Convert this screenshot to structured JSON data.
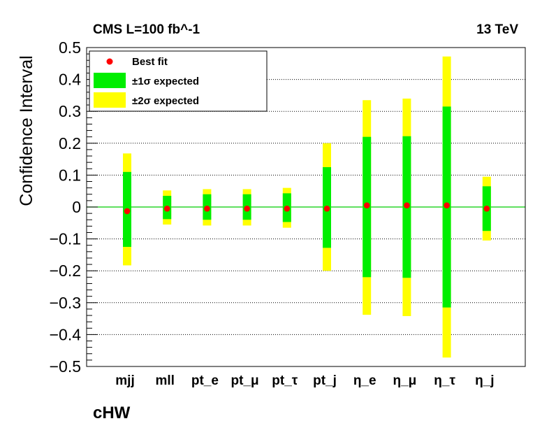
{
  "header": {
    "left": "CMS   L=100 fb^-1",
    "right": "13 TeV"
  },
  "operator_label": "cHW",
  "legend": {
    "best_fit": "Best fit",
    "one_sigma": "±1σ expected",
    "two_sigma": "±2σ expected"
  },
  "colors": {
    "best_fit": "#ff0000",
    "one_sigma": "#00ee00",
    "two_sigma": "#ffff00",
    "zero_line": "#00cc00"
  },
  "chart_data": {
    "type": "bar",
    "title": "",
    "xlabel": "",
    "ylabel": "Confidence Interval",
    "ylim": [
      -0.5,
      0.5
    ],
    "yticks": [
      "0.5",
      "0.4",
      "0.3",
      "0.2",
      "0.1",
      "0",
      "−0.1",
      "−0.2",
      "−0.3",
      "−0.4",
      "−0.5"
    ],
    "ytick_values": [
      0.5,
      0.4,
      0.3,
      0.2,
      0.1,
      0,
      -0.1,
      -0.2,
      -0.3,
      -0.4,
      -0.5
    ],
    "grid": "horizontal dotted",
    "legend_position": "top-left",
    "categories": [
      "mjj",
      "mll",
      "pt_e",
      "pt_μ",
      "pt_τ",
      "pt_j",
      "η_e",
      "η_μ",
      "η_τ",
      "η_j"
    ],
    "best_fit": [
      -0.013,
      -0.005,
      -0.005,
      -0.005,
      -0.005,
      -0.005,
      0.005,
      0.005,
      0.005,
      -0.005
    ],
    "one_sigma": [
      [
        -0.125,
        0.11
      ],
      [
        -0.038,
        0.035
      ],
      [
        -0.04,
        0.04
      ],
      [
        -0.04,
        0.04
      ],
      [
        -0.047,
        0.043
      ],
      [
        -0.128,
        0.125
      ],
      [
        -0.22,
        0.22
      ],
      [
        -0.222,
        0.222
      ],
      [
        -0.315,
        0.315
      ],
      [
        -0.075,
        0.065
      ]
    ],
    "two_sigma": [
      [
        -0.183,
        0.168
      ],
      [
        -0.055,
        0.052
      ],
      [
        -0.058,
        0.056
      ],
      [
        -0.058,
        0.056
      ],
      [
        -0.065,
        0.06
      ],
      [
        -0.2,
        0.2
      ],
      [
        -0.338,
        0.335
      ],
      [
        -0.342,
        0.34
      ],
      [
        -0.472,
        0.472
      ],
      [
        -0.105,
        0.095
      ]
    ]
  }
}
